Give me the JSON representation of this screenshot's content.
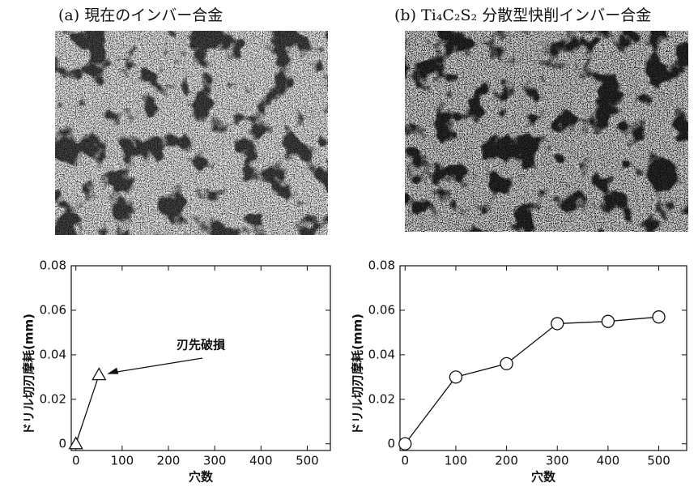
{
  "chart_data": [
    {
      "type": "line",
      "title": "(a) 現在のインバー合金",
      "marker": "triangle",
      "x": [
        0,
        50
      ],
      "values": [
        0,
        0.031
      ],
      "xlim": [
        -10,
        550
      ],
      "ylim": [
        -0.003,
        0.08
      ],
      "xticks": [
        0,
        100,
        200,
        300,
        400,
        500
      ],
      "yticks": [
        0,
        0.02,
        0.04,
        0.06,
        0.08
      ],
      "xlabel": "穴数",
      "ylabel": "ドリル切刃摩耗(mm)",
      "annotation": "刃先破損"
    },
    {
      "type": "line",
      "title": "(b) Ti₄C₂S₂ 分散型快削インバー合金",
      "marker": "circle",
      "x": [
        0,
        100,
        200,
        300,
        400,
        500
      ],
      "values": [
        0,
        0.03,
        0.036,
        0.054,
        0.055,
        0.057
      ],
      "xlim": [
        -10,
        555
      ],
      "ylim": [
        -0.003,
        0.08
      ],
      "xticks": [
        0,
        100,
        200,
        300,
        400,
        500
      ],
      "yticks": [
        0,
        0.02,
        0.04,
        0.06,
        0.08
      ],
      "xlabel": "穴数",
      "ylabel": "ドリル切刃摩耗(mm)"
    }
  ]
}
